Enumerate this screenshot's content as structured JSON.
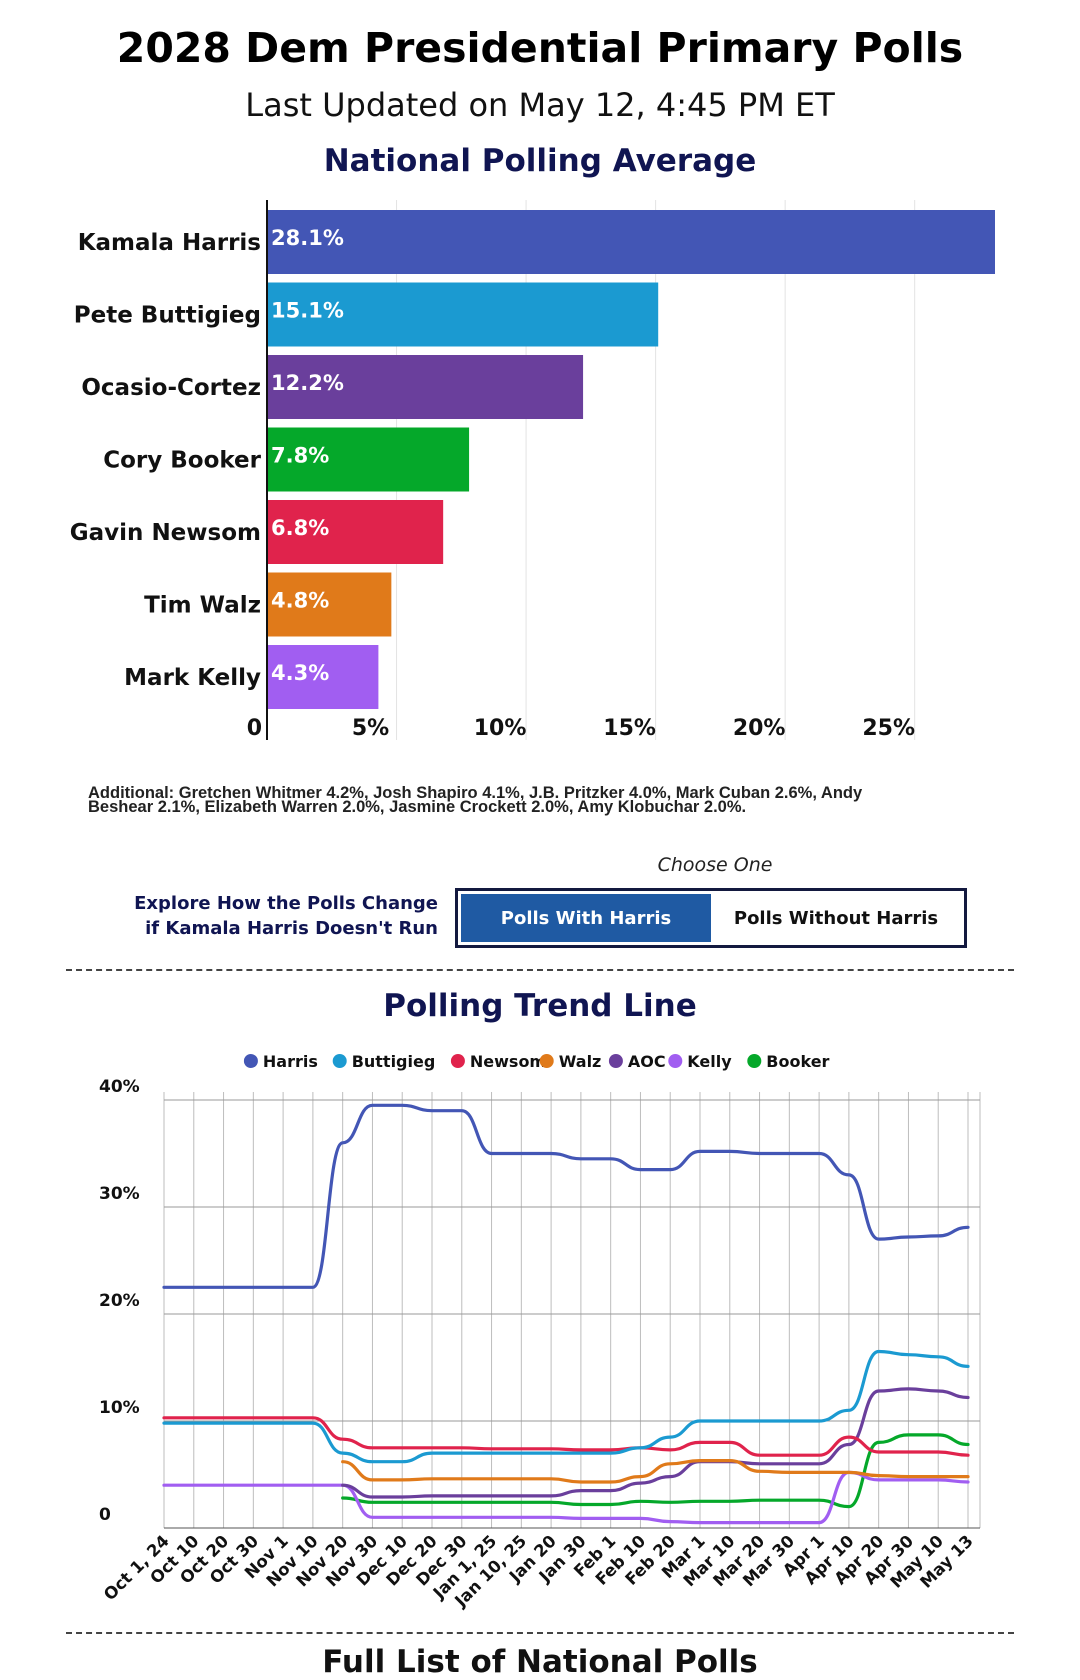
{
  "header": {
    "title": "2028 Dem Presidential Primary Polls",
    "last_updated": "Last Updated on May 12, 4:45 PM ET"
  },
  "chart_data": [
    {
      "type": "bar",
      "orientation": "horizontal",
      "title": "National Polling Average",
      "categories": [
        "Kamala Harris",
        "Pete Buttigieg",
        "Ocasio-Cortez",
        "Cory Booker",
        "Gavin Newsom",
        "Tim Walz",
        "Mark Kelly"
      ],
      "values": [
        28.1,
        15.1,
        12.2,
        7.8,
        6.8,
        4.8,
        4.3
      ],
      "value_labels": [
        "28.1%",
        "15.1%",
        "12.2%",
        "7.8%",
        "6.8%",
        "4.8%",
        "4.3%"
      ],
      "colors": [
        "#4356b5",
        "#1b9ad1",
        "#6a3f9c",
        "#05a82a",
        "#e0234c",
        "#e07a1a",
        "#a15ef1"
      ],
      "xlim": [
        0,
        28.1
      ],
      "x_ticks": [
        0,
        5,
        10,
        15,
        20,
        25
      ],
      "x_tick_labels": [
        "0",
        "5%",
        "10%",
        "15%",
        "20%",
        "25%"
      ],
      "grid": true
    },
    {
      "type": "line",
      "title": "Polling Trend Line",
      "legend_position": "top",
      "x": [
        "Oct 1, 24",
        "Oct 10",
        "Oct 20",
        "Oct 30",
        "Nov 1",
        "Nov 10",
        "Nov 20",
        "Nov 30",
        "Dec 10",
        "Dec 20",
        "Dec 30",
        "Jan 1, 25",
        "Jan 10, 25",
        "Jan 20",
        "Jan 30",
        "Feb 1",
        "Feb 10",
        "Feb 20",
        "Mar 1",
        "Mar 10",
        "Mar 20",
        "Mar 30",
        "Apr 1",
        "Apr 10",
        "Apr 20",
        "Apr 30",
        "May 10",
        "May 13"
      ],
      "ylim": [
        0,
        40
      ],
      "y_ticks": [
        0,
        10,
        20,
        30,
        40
      ],
      "y_tick_labels": [
        "0",
        "10%",
        "20%",
        "30%",
        "40%"
      ],
      "grid": true,
      "series": [
        {
          "name": "Harris",
          "color": "#4356b5",
          "values": [
            22.5,
            22.5,
            22.5,
            22.5,
            22.5,
            22.5,
            36,
            39.5,
            39.5,
            39,
            39,
            35,
            35,
            35,
            34.5,
            34.5,
            33.5,
            33.5,
            35.2,
            35.2,
            35,
            35,
            35,
            33,
            27,
            27.2,
            27.3,
            28.1
          ]
        },
        {
          "name": "Buttigieg",
          "color": "#1b9ad1",
          "values": [
            9.8,
            9.8,
            9.8,
            9.8,
            9.8,
            9.8,
            7,
            6.2,
            6.2,
            7,
            7,
            7,
            7,
            7,
            7,
            7,
            7.5,
            8.5,
            10,
            10,
            10,
            10,
            10,
            11,
            16.5,
            16.2,
            16,
            15.1
          ]
        },
        {
          "name": "Newsom",
          "color": "#e0234c",
          "values": [
            10.3,
            10.3,
            10.3,
            10.3,
            10.3,
            10.3,
            8.3,
            7.5,
            7.5,
            7.5,
            7.5,
            7.4,
            7.4,
            7.4,
            7.3,
            7.3,
            7.5,
            7.3,
            8,
            8,
            6.8,
            6.8,
            6.8,
            8.5,
            7.1,
            7.1,
            7.1,
            6.8
          ]
        },
        {
          "name": "Walz",
          "color": "#e07a1a",
          "values": [
            null,
            null,
            null,
            null,
            null,
            null,
            6.2,
            4.5,
            4.5,
            4.6,
            4.6,
            4.6,
            4.6,
            4.6,
            4.3,
            4.3,
            4.8,
            6,
            6.3,
            6.3,
            5.3,
            5.2,
            5.2,
            5.2,
            4.9,
            4.8,
            4.8,
            4.8
          ]
        },
        {
          "name": "AOC",
          "color": "#6a3f9c",
          "values": [
            null,
            null,
            null,
            null,
            null,
            null,
            4,
            2.9,
            2.9,
            3,
            3,
            3,
            3,
            3,
            3.5,
            3.5,
            4.2,
            4.8,
            6.2,
            6.2,
            6,
            6,
            6,
            7.8,
            12.8,
            13,
            12.8,
            12.2
          ]
        },
        {
          "name": "Kelly",
          "color": "#a15ef1",
          "values": [
            4,
            4,
            4,
            4,
            4,
            4,
            4,
            1,
            1,
            1,
            1,
            1,
            1,
            1,
            0.9,
            0.9,
            0.9,
            0.6,
            0.5,
            0.5,
            0.5,
            0.5,
            0.5,
            5.2,
            4.5,
            4.5,
            4.5,
            4.3
          ]
        },
        {
          "name": "Booker",
          "color": "#05a82a",
          "values": [
            null,
            null,
            null,
            null,
            null,
            null,
            2.8,
            2.4,
            2.4,
            2.4,
            2.4,
            2.4,
            2.4,
            2.4,
            2.2,
            2.2,
            2.5,
            2.4,
            2.5,
            2.5,
            2.6,
            2.6,
            2.6,
            2,
            8,
            8.7,
            8.7,
            7.8
          ]
        }
      ]
    }
  ],
  "additional": {
    "line1": "Additional: Gretchen Whitmer 4.2%, Josh Shapiro 4.1%, J.B. Pritzker 4.0%, Mark Cuban 2.6%, Andy",
    "line2": "Beshear 2.1%, Elizabeth Warren 2.0%, Jasmine Crockett 2.0%, Amy Klobuchar 2.0%."
  },
  "toggle": {
    "caption": "Choose One",
    "explore_line1": "Explore How the Polls Change",
    "explore_line2": "if Kamala Harris Doesn't Run",
    "option_with": "Polls With Harris",
    "option_without": "Polls Without Harris",
    "selected": "Polls With Harris"
  },
  "bottom": {
    "title": "Full List of National Polls"
  }
}
